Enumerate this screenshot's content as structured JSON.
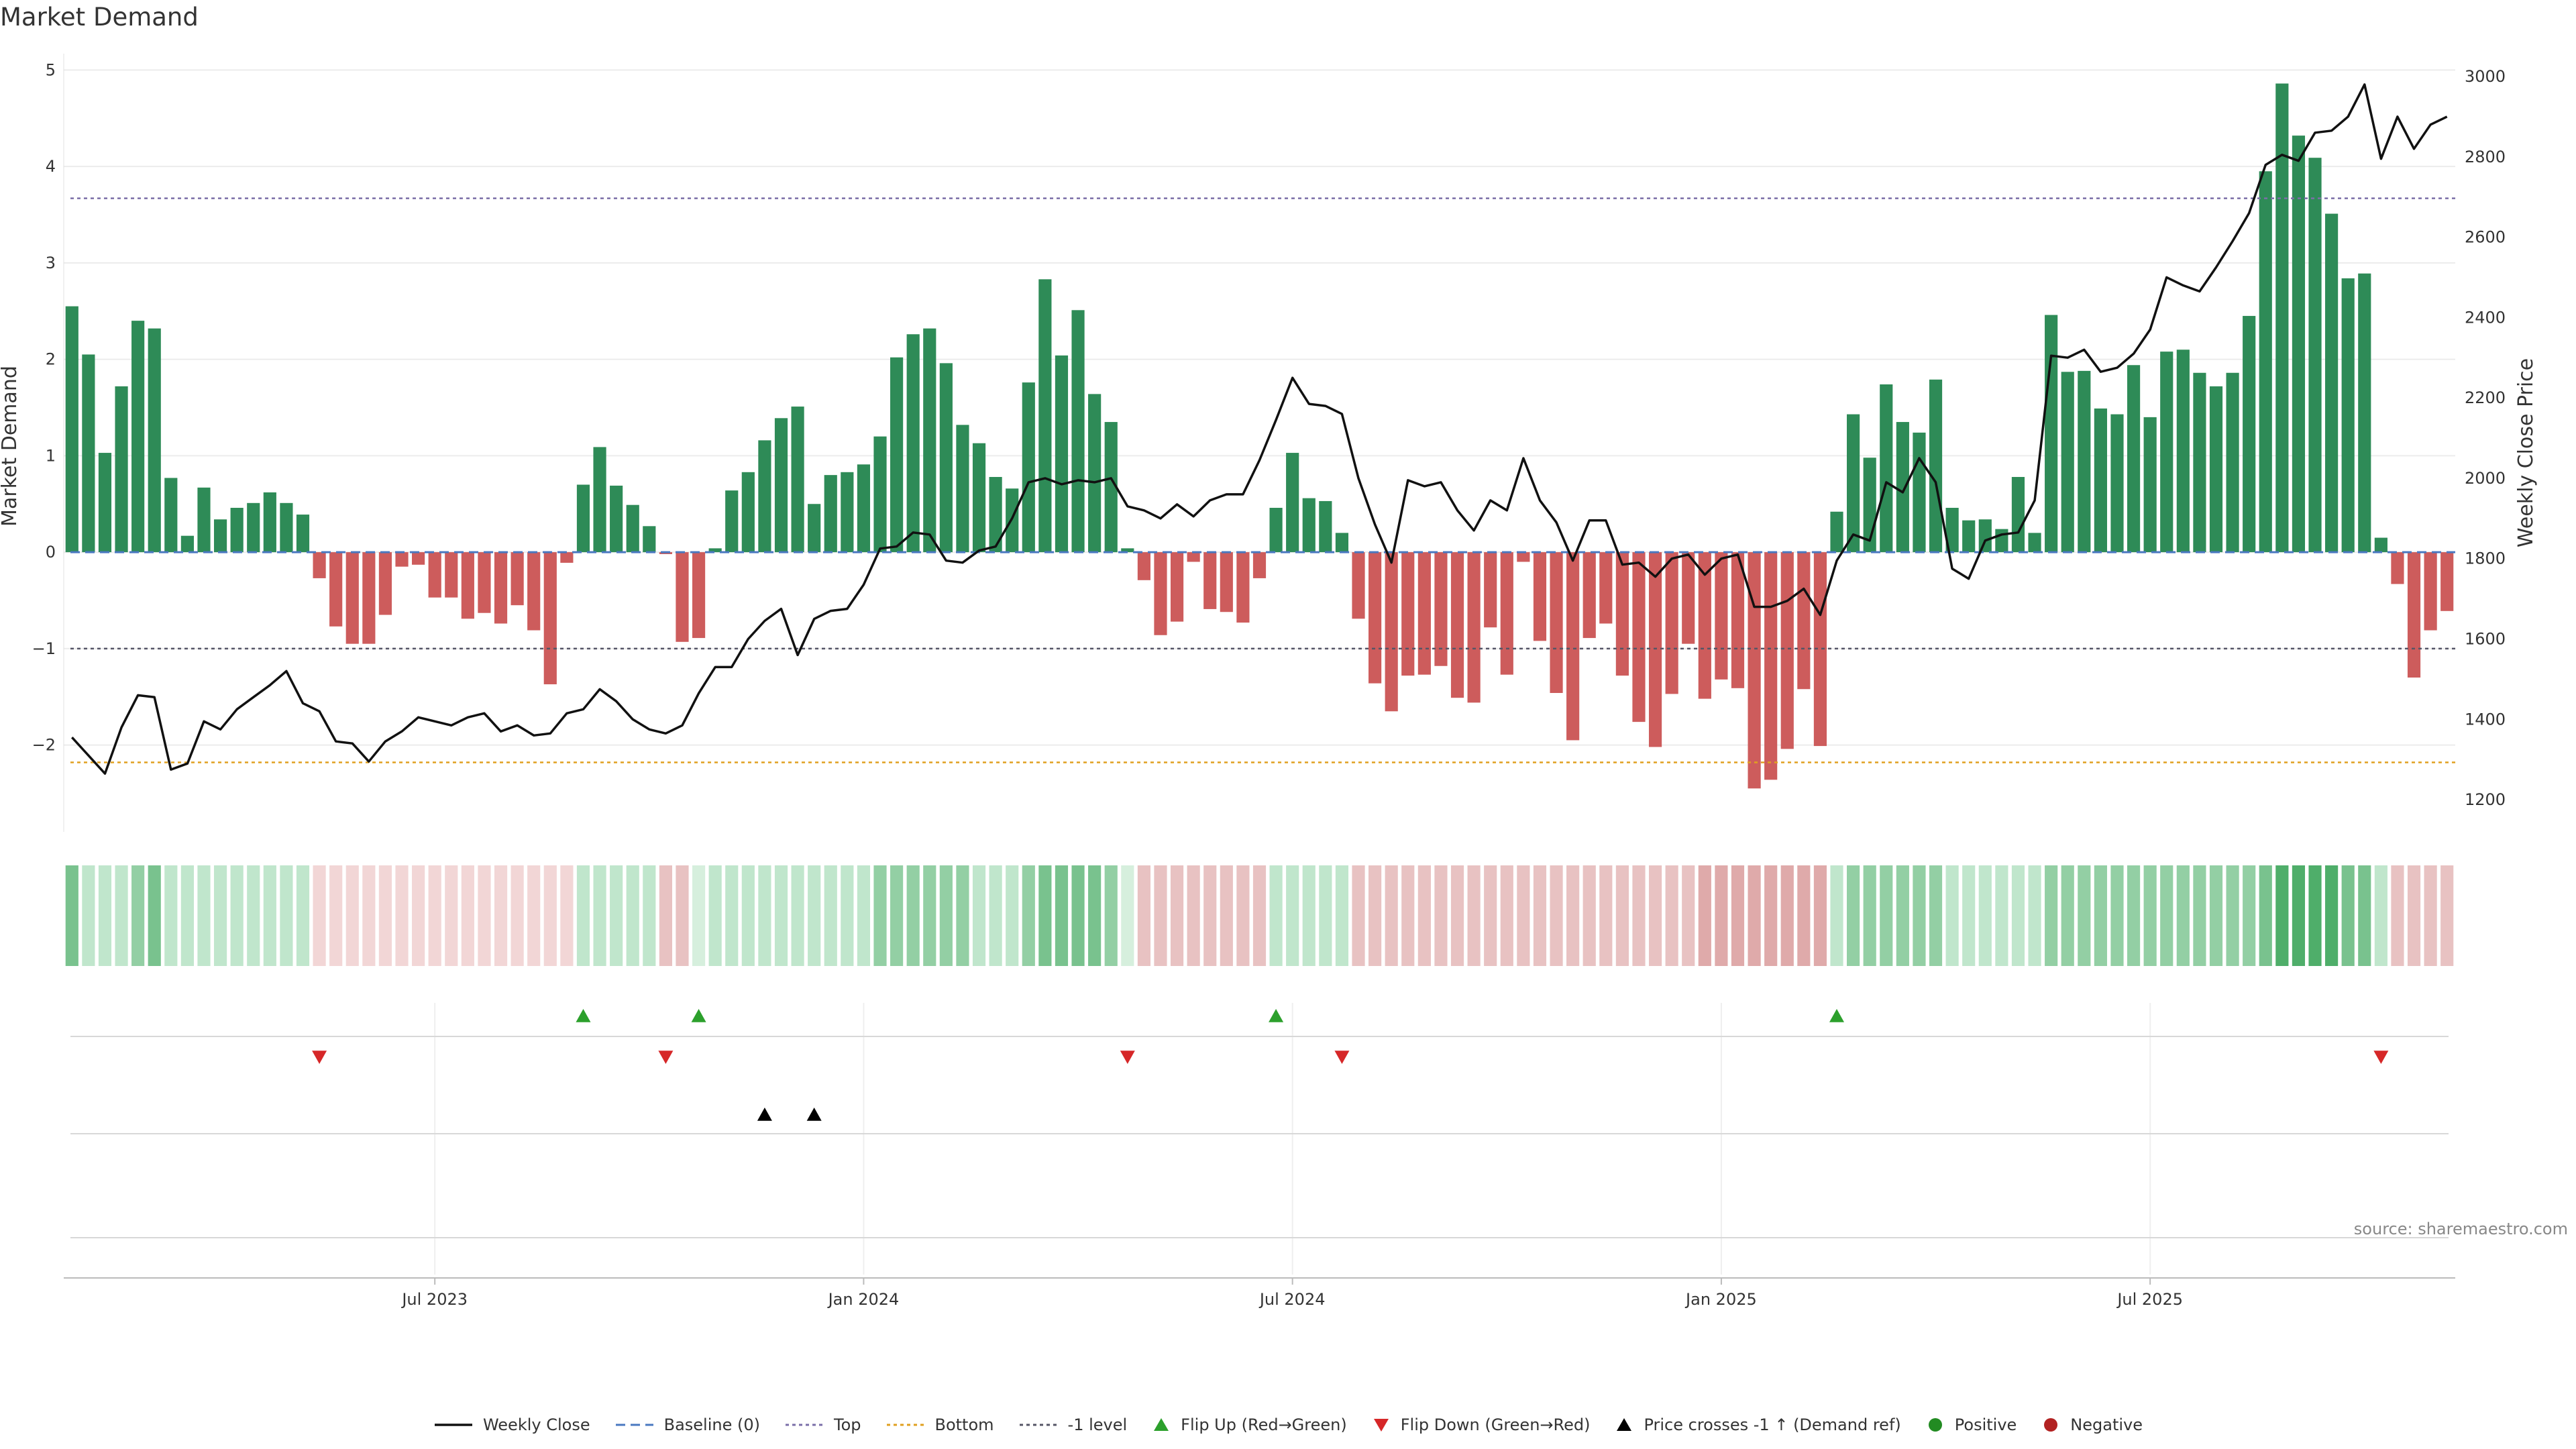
{
  "title": "Market Demand",
  "source": "source: sharemaestro.com",
  "colors": {
    "positive_bar": "#2e8b57",
    "negative_bar": "#cd5c5c",
    "price_line": "#111111",
    "baseline": "#4a78c0",
    "top_line": "#7b6fa8",
    "bottom_line": "#e0a020",
    "minus1_line": "#555566",
    "flip_up": "#2ca02c",
    "flip_down": "#d62728",
    "cross": "#000000",
    "positive_dot": "#228b22",
    "negative_dot": "#b22222"
  },
  "legend": [
    {
      "label": "Weekly Close",
      "kind": "solid",
      "color": "#111111",
      "icon": "line-solid-icon"
    },
    {
      "label": "Baseline (0)",
      "kind": "dash",
      "color": "#4a78c0",
      "icon": "line-dashed-icon"
    },
    {
      "label": "Top",
      "kind": "dot",
      "color": "#7b6fa8",
      "icon": "line-dotted-icon"
    },
    {
      "label": "Bottom",
      "kind": "dot",
      "color": "#e0a020",
      "icon": "line-dotted-icon"
    },
    {
      "label": "-1 level",
      "kind": "dot",
      "color": "#555566",
      "icon": "line-dotted-icon"
    },
    {
      "label": "Flip Up (Red→Green)",
      "kind": "tri-up",
      "color": "#2ca02c",
      "icon": "triangle-up-icon"
    },
    {
      "label": "Flip Down (Green→Red)",
      "kind": "tri-down",
      "color": "#d62728",
      "icon": "triangle-down-icon"
    },
    {
      "label": "Price crosses -1 ↑ (Demand ref)",
      "kind": "tri-up",
      "color": "#000000",
      "icon": "triangle-up-icon"
    },
    {
      "label": "Positive",
      "kind": "circle",
      "color": "#228b22",
      "icon": "circle-icon"
    },
    {
      "label": "Negative",
      "kind": "circle",
      "color": "#b22222",
      "icon": "circle-icon"
    }
  ],
  "chart_data": {
    "type": "bar",
    "title": "Market Demand",
    "ylabel": "Market Demand",
    "y2label": "Weekly Close Price",
    "ylim": [
      -2.9,
      5.1
    ],
    "y2lim": [
      1120,
      3040
    ],
    "yticks": [
      "−2",
      "−1",
      "0",
      "1",
      "2",
      "3",
      "4",
      "5"
    ],
    "ytick_values": [
      -2,
      -1,
      0,
      1,
      2,
      3,
      4,
      5
    ],
    "y2ticks": [
      "1200",
      "1400",
      "1600",
      "1800",
      "2000",
      "2200",
      "2400",
      "2600",
      "2800",
      "3000"
    ],
    "y2tick_values": [
      1200,
      1400,
      1600,
      1800,
      2000,
      2200,
      2400,
      2600,
      2800,
      3000
    ],
    "reference_lines": {
      "top": 3.67,
      "bottom": -2.18,
      "minus1": -1,
      "baseline": 0
    },
    "x_start_index": 0,
    "xticks": [
      {
        "label": "Jul 2023",
        "index": 22
      },
      {
        "label": "Jan 2024",
        "index": 48
      },
      {
        "label": "Jul 2024",
        "index": 74
      },
      {
        "label": "Jan 2025",
        "index": 100
      },
      {
        "label": "Jul 2025",
        "index": 126
      }
    ],
    "demand": [
      2.55,
      2.05,
      1.03,
      1.72,
      2.4,
      2.32,
      0.77,
      0.17,
      0.67,
      0.34,
      0.46,
      0.51,
      0.62,
      0.51,
      0.39,
      -0.27,
      -0.77,
      -0.95,
      -0.95,
      -0.65,
      -0.15,
      -0.13,
      -0.47,
      -0.47,
      -0.69,
      -0.63,
      -0.74,
      -0.55,
      -0.81,
      -1.37,
      -0.11,
      0.7,
      1.09,
      0.69,
      0.49,
      0.27,
      -0.02,
      -0.93,
      -0.89,
      0.04,
      0.64,
      0.83,
      1.16,
      1.39,
      1.51,
      0.5,
      0.8,
      0.83,
      0.91,
      1.2,
      2.02,
      2.26,
      2.32,
      1.96,
      1.32,
      1.13,
      0.78,
      0.66,
      1.76,
      2.83,
      2.04,
      2.51,
      1.64,
      1.35,
      0.04,
      -0.29,
      -0.86,
      -0.72,
      -0.1,
      -0.59,
      -0.62,
      -0.73,
      -0.27,
      0.46,
      1.03,
      0.56,
      0.53,
      0.2,
      -0.69,
      -1.36,
      -1.65,
      -1.28,
      -1.27,
      -1.18,
      -1.51,
      -1.56,
      -0.78,
      -1.27,
      -0.1,
      -0.92,
      -1.46,
      -1.95,
      -0.89,
      -0.74,
      -1.28,
      -1.76,
      -2.02,
      -1.47,
      -0.95,
      -1.52,
      -1.32,
      -1.41,
      -2.45,
      -2.36,
      -2.04,
      -1.42,
      -2.01,
      0.42,
      1.43,
      0.98,
      1.74,
      1.35,
      1.24,
      1.79,
      0.46,
      0.33,
      0.34,
      0.24,
      0.78,
      0.2,
      2.46,
      1.87,
      1.88,
      1.49,
      1.43,
      1.94,
      1.4,
      2.08,
      2.1,
      1.86,
      1.72,
      1.86,
      2.45,
      3.95,
      4.86,
      4.32,
      4.09,
      3.51,
      2.84,
      2.89,
      0.15,
      -0.33,
      -1.3,
      -0.81,
      -0.61
    ],
    "price": [
      1355,
      1310,
      1265,
      1380,
      1460,
      1455,
      1275,
      1290,
      1395,
      1375,
      1425,
      1455,
      1485,
      1520,
      1440,
      1420,
      1345,
      1340,
      1295,
      1345,
      1370,
      1405,
      1395,
      1385,
      1405,
      1415,
      1370,
      1385,
      1360,
      1365,
      1415,
      1425,
      1475,
      1445,
      1400,
      1375,
      1365,
      1385,
      1465,
      1530,
      1530,
      1600,
      1645,
      1675,
      1560,
      1650,
      1670,
      1675,
      1735,
      1825,
      1830,
      1865,
      1860,
      1795,
      1790,
      1820,
      1830,
      1900,
      1990,
      2000,
      1985,
      1995,
      1990,
      2000,
      1930,
      1920,
      1900,
      1935,
      1905,
      1945,
      1960,
      1960,
      2045,
      2145,
      2250,
      2185,
      2180,
      2160,
      2000,
      1885,
      1790,
      1995,
      1980,
      1990,
      1920,
      1870,
      1945,
      1920,
      2050,
      1945,
      1890,
      1795,
      1895,
      1895,
      1785,
      1790,
      1755,
      1800,
      1810,
      1760,
      1800,
      1810,
      1680,
      1680,
      1695,
      1725,
      1660,
      1795,
      1860,
      1845,
      1990,
      1965,
      2050,
      1990,
      1775,
      1750,
      1845,
      1860,
      1865,
      1945,
      2305,
      2300,
      2320,
      2265,
      2275,
      2310,
      2370,
      2500,
      2480,
      2465,
      2525,
      2590,
      2660,
      2780,
      2805,
      2790,
      2860,
      2865,
      2900,
      2980,
      2795,
      2900,
      2820,
      2880,
      2900
    ],
    "strip_tone": [
      "g3",
      "g1",
      "g1",
      "g1",
      "g2",
      "g3",
      "g1",
      "g1",
      "g1",
      "g1",
      "g1",
      "g1",
      "g1",
      "g1",
      "g1",
      "r0",
      "r0",
      "r0",
      "r0",
      "r0",
      "r0",
      "r0",
      "r0",
      "r0",
      "r0",
      "r0",
      "r0",
      "r0",
      "r0",
      "r0",
      "r0",
      "g1",
      "g1",
      "g1",
      "g1",
      "g1",
      "r1",
      "r1",
      "g0",
      "g1",
      "g1",
      "g1",
      "g1",
      "g1",
      "g1",
      "g1",
      "g1",
      "g1",
      "g1",
      "g2",
      "g2",
      "g2",
      "g2",
      "g2",
      "g2",
      "g1",
      "g1",
      "g1",
      "g2",
      "g3",
      "g3",
      "g3",
      "g3",
      "g2",
      "g0",
      "r1",
      "r1",
      "r1",
      "r1",
      "r1",
      "r1",
      "r1",
      "r1",
      "g1",
      "g1",
      "g1",
      "g1",
      "g1",
      "r1",
      "r1",
      "r1",
      "r1",
      "r1",
      "r1",
      "r1",
      "r1",
      "r1",
      "r1",
      "r1",
      "r1",
      "r1",
      "r1",
      "r1",
      "r1",
      "r1",
      "r1",
      "r1",
      "r1",
      "r1",
      "r2",
      "r2",
      "r2",
      "r2",
      "r2",
      "r2",
      "r2",
      "r2",
      "g1",
      "g2",
      "g2",
      "g2",
      "g2",
      "g2",
      "g2",
      "g1",
      "g1",
      "g1",
      "g1",
      "g1",
      "g1",
      "g2",
      "g2",
      "g2",
      "g2",
      "g2",
      "g2",
      "g2",
      "g2",
      "g2",
      "g2",
      "g2",
      "g2",
      "g2",
      "g3",
      "g4",
      "g4",
      "g4",
      "g4",
      "g3",
      "g3",
      "g1",
      "r1",
      "r1",
      "r1",
      "r1"
    ],
    "flip_up": [
      31,
      38,
      73,
      107
    ],
    "flip_down": [
      15,
      36,
      64,
      77,
      140
    ],
    "price_cross": [
      42,
      45
    ]
  }
}
